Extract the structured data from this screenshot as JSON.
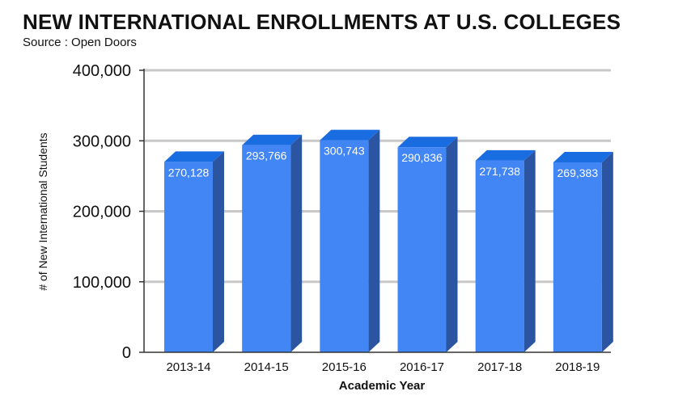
{
  "header": {
    "title": "NEW INTERNATIONAL ENROLLMENTS AT U.S. COLLEGES",
    "subtitle": "Source : Open Doors"
  },
  "colors": {
    "bar_front": "#4285f4",
    "bar_top": "#1a6de0",
    "bar_side": "#2b55a1",
    "grid": "#c8c8c8",
    "axis": "#333333"
  },
  "chart_data": {
    "type": "bar",
    "title": "NEW INTERNATIONAL ENROLLMENTS AT U.S. COLLEGES",
    "subtitle": "Source : Open Doors",
    "categories": [
      "2013-14",
      "2014-15",
      "2015-16",
      "2016-17",
      "2017-18",
      "2018-19"
    ],
    "values": [
      270128,
      293766,
      300743,
      290836,
      271738,
      269383
    ],
    "data_labels": [
      "270,128",
      "293,766",
      "300,743",
      "290,836",
      "271,738",
      "269,383"
    ],
    "xlabel": "Academic Year",
    "ylabel": "# of New International Students",
    "ylim": [
      0,
      400000
    ],
    "yticks": [
      0,
      100000,
      200000,
      300000,
      400000
    ],
    "ytick_labels": [
      "0",
      "100,000",
      "200,000",
      "300,000",
      "400,000"
    ],
    "grid": true,
    "legend": "none",
    "style": "3d-bar"
  }
}
